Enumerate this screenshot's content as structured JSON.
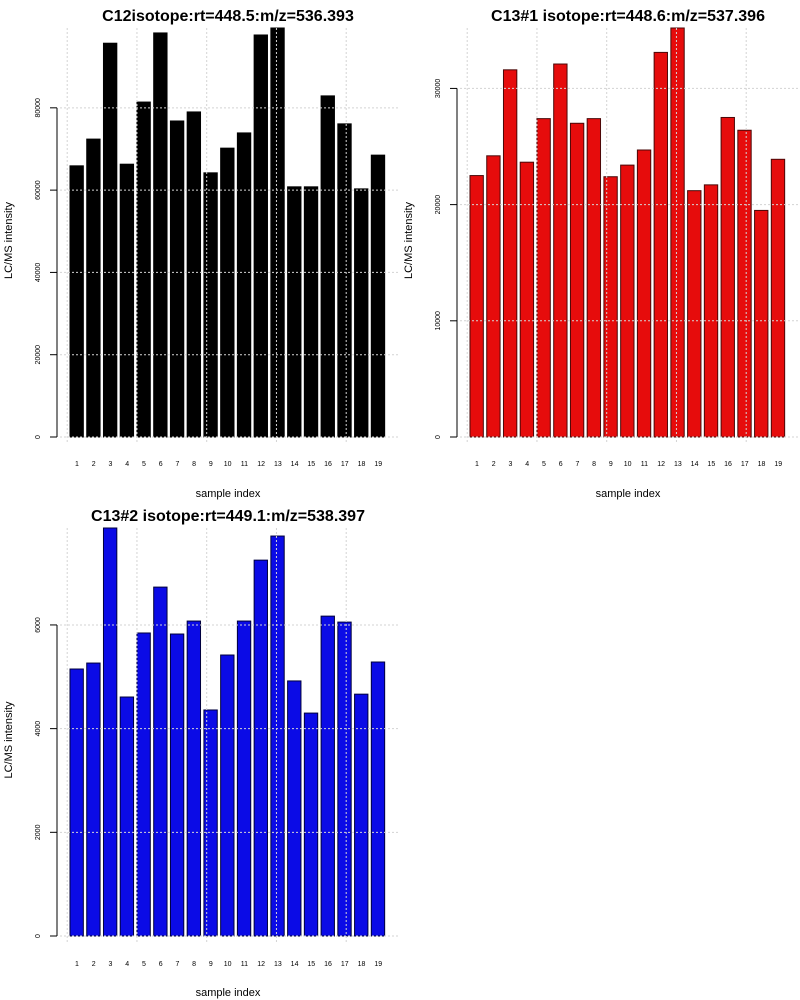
{
  "chart_data": [
    {
      "type": "bar",
      "title": "C12isotope:rt=448.5:m/z=536.393",
      "xlabel": "sample index",
      "ylabel": "LC/MS intensity",
      "categories": [
        "1",
        "2",
        "3",
        "4",
        "5",
        "6",
        "7",
        "8",
        "9",
        "10",
        "11",
        "12",
        "13",
        "14",
        "15",
        "16",
        "17",
        "18",
        "19"
      ],
      "values": [
        65900,
        72400,
        95700,
        66300,
        81400,
        98200,
        76800,
        79000,
        64200,
        70200,
        73900,
        97700,
        99400,
        60800,
        60800,
        82900,
        76100,
        60300,
        68500
      ],
      "yticks": [
        0,
        20000,
        40000,
        60000,
        80000
      ],
      "ytick_labels": [
        "0",
        "20000",
        "40000",
        "60000",
        "80000"
      ],
      "ylim": [
        0,
        99400
      ],
      "grid": true,
      "color": "#000000",
      "border_color": "#000000"
    },
    {
      "type": "bar",
      "title": "C13#1 isotope:rt=448.6:m/z=537.396",
      "xlabel": "sample index",
      "ylabel": "LC/MS intensity",
      "categories": [
        "1",
        "2",
        "3",
        "4",
        "5",
        "6",
        "7",
        "8",
        "9",
        "10",
        "11",
        "12",
        "13",
        "14",
        "15",
        "16",
        "17",
        "18",
        "19"
      ],
      "values": [
        22500,
        24200,
        31600,
        23650,
        27400,
        32100,
        27000,
        27400,
        22400,
        23400,
        24700,
        33100,
        35200,
        21200,
        21700,
        27500,
        26400,
        19500,
        23900
      ],
      "yticks": [
        0,
        10000,
        20000,
        30000
      ],
      "ytick_labels": [
        "0",
        "10000",
        "20000",
        "30000"
      ],
      "ylim": [
        0,
        35200
      ],
      "grid": true,
      "color": "#e60c0c",
      "border_color": "#4a0808"
    },
    {
      "type": "bar",
      "title": "C13#2 isotope:rt=449.1:m/z=538.397",
      "xlabel": "sample index",
      "ylabel": "LC/MS intensity",
      "categories": [
        "1",
        "2",
        "3",
        "4",
        "5",
        "6",
        "7",
        "8",
        "9",
        "10",
        "11",
        "12",
        "13",
        "14",
        "15",
        "16",
        "17",
        "18",
        "19"
      ],
      "values": [
        5150,
        5265,
        7870,
        4610,
        5845,
        6730,
        5825,
        6075,
        4360,
        5420,
        6075,
        7250,
        7715,
        4920,
        4300,
        6170,
        6055,
        4665,
        5285
      ],
      "yticks": [
        0,
        2000,
        4000,
        6000
      ],
      "ytick_labels": [
        "0",
        "2000",
        "4000",
        "6000"
      ],
      "ylim": [
        0,
        7870
      ],
      "grid": true,
      "color": "#0b0be6",
      "border_color": "#00003c"
    }
  ]
}
